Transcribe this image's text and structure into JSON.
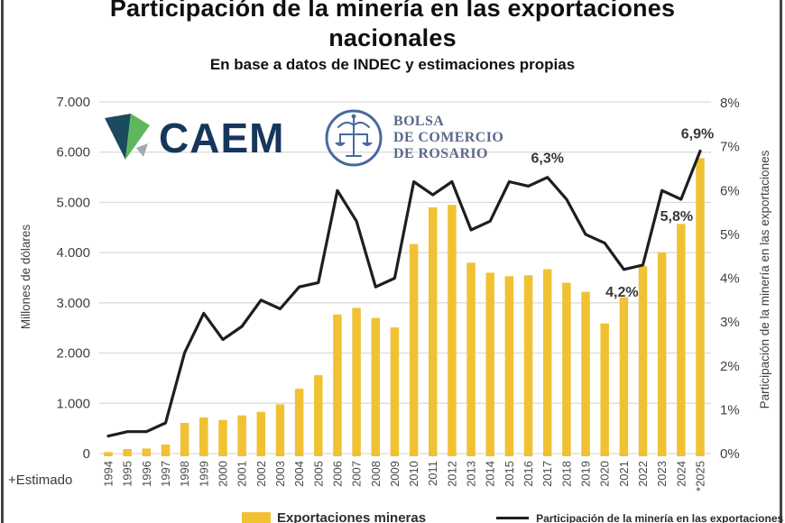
{
  "title": {
    "line1": "Participación de la minería en las exportaciones",
    "line2": "nacionales",
    "subtitle": "En base a datos de INDEC y estimaciones propias"
  },
  "logos": {
    "caem_text": "CAEM",
    "bcr_lines": [
      "BOLSA",
      "DE COMERCIO",
      "DE ROSARIO"
    ]
  },
  "footnote": "+Estimado",
  "legend": {
    "bars_label": "Exportaciones mineras",
    "line_label": "Participación de la minería en las exportaciones"
  },
  "colors": {
    "bar": "#F0C233",
    "line": "#1E1E1E",
    "grid": "#D9D9D9",
    "tick_text": "#3F3F3F",
    "year_text": "#4A4A4A",
    "annotation_text": "#383838",
    "caem_navy": "#16365C",
    "caem_green": "#5FB75D",
    "caem_teal": "#1C4A5E",
    "bcr_blue": "#49699E"
  },
  "chart_data": {
    "type": "bar",
    "subtype": "combo bar+line, dual axis",
    "categories": [
      "1994",
      "1995",
      "1996",
      "1997",
      "1998",
      "1999",
      "2000",
      "2001",
      "2002",
      "2003",
      "2004",
      "2005",
      "2006",
      "2007",
      "2008",
      "2009",
      "2010",
      "2011",
      "2012",
      "2013",
      "2014",
      "2015",
      "2016",
      "2017",
      "2018",
      "2019",
      "2020",
      "2021",
      "2022",
      "2023",
      "2024",
      "*2025"
    ],
    "series": [
      {
        "name": "Exportaciones mineras",
        "type": "bar",
        "axis": "left",
        "unit": "millones de dólares",
        "values": [
          30,
          90,
          100,
          180,
          610,
          720,
          670,
          760,
          830,
          980,
          1290,
          1560,
          2770,
          2900,
          2700,
          2510,
          4170,
          4900,
          4950,
          3800,
          3600,
          3530,
          3550,
          3670,
          3400,
          3220,
          2590,
          3110,
          3730,
          4000,
          4570,
          5880
        ]
      },
      {
        "name": "Participación de la minería en las exportaciones",
        "type": "line",
        "axis": "right",
        "unit": "%",
        "values": [
          0.4,
          0.5,
          0.5,
          0.7,
          2.3,
          3.2,
          2.6,
          2.9,
          3.5,
          3.3,
          3.8,
          3.9,
          6.0,
          5.3,
          3.8,
          4.0,
          6.2,
          5.9,
          6.2,
          5.1,
          5.3,
          6.2,
          6.1,
          6.3,
          5.8,
          5.0,
          4.8,
          4.2,
          4.3,
          6.0,
          5.8,
          6.9
        ]
      }
    ],
    "left_axis": {
      "label": "Millones de dólares",
      "min": 0,
      "max": 7000,
      "step": 1000,
      "tick_labels": [
        "0",
        "1.000",
        "2.000",
        "3.000",
        "4.000",
        "5.000",
        "6.000",
        "7.000"
      ]
    },
    "right_axis": {
      "label": "Participación de la minería en las exportaciones",
      "min": 0,
      "max": 8,
      "step": 1,
      "tick_labels": [
        "0%",
        "1%",
        "2%",
        "3%",
        "4%",
        "5%",
        "6%",
        "7%",
        "8%"
      ]
    },
    "annotations": [
      {
        "text": "6,3%",
        "category": "2017",
        "value": 6.3
      },
      {
        "text": "4,2%",
        "category": "2021",
        "value": 4.2
      },
      {
        "text": "5,8%",
        "category": "2024",
        "value": 5.8
      },
      {
        "text": "6,9%",
        "category": "*2025",
        "value": 6.9
      }
    ],
    "grid": "horizontal gridlines on",
    "legend_position": "bottom"
  }
}
